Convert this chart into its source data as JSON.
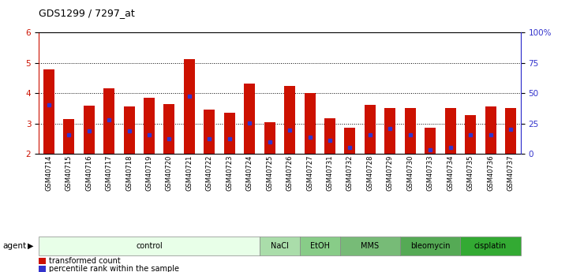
{
  "title": "GDS1299 / 7297_at",
  "samples": [
    "GSM40714",
    "GSM40715",
    "GSM40716",
    "GSM40717",
    "GSM40718",
    "GSM40719",
    "GSM40720",
    "GSM40721",
    "GSM40722",
    "GSM40723",
    "GSM40724",
    "GSM40725",
    "GSM40726",
    "GSM40727",
    "GSM40731",
    "GSM40732",
    "GSM40728",
    "GSM40729",
    "GSM40730",
    "GSM40733",
    "GSM40734",
    "GSM40735",
    "GSM40736",
    "GSM40737"
  ],
  "bar_values": [
    4.78,
    3.15,
    3.6,
    4.17,
    3.55,
    3.85,
    3.65,
    5.12,
    3.45,
    3.35,
    4.32,
    3.05,
    4.23,
    4.0,
    3.17,
    2.87,
    3.62,
    3.5,
    3.5,
    2.87,
    3.5,
    3.28,
    3.55,
    3.5
  ],
  "percentile_values": [
    3.62,
    2.62,
    2.75,
    3.12,
    2.75,
    2.62,
    2.5,
    3.9,
    2.5,
    2.5,
    3.02,
    2.4,
    2.78,
    2.55,
    2.45,
    2.2,
    2.62,
    2.82,
    2.62,
    2.12,
    2.2,
    2.62,
    2.62,
    2.8
  ],
  "y_min": 2,
  "y_max": 6,
  "y_ticks_left": [
    2,
    3,
    4,
    5,
    6
  ],
  "y_ticks_right": [
    0,
    25,
    50,
    75,
    100
  ],
  "bar_color": "#cc1100",
  "marker_color": "#3333cc",
  "groups": [
    {
      "label": "control",
      "start": 0,
      "end": 11,
      "color": "#e8ffe8"
    },
    {
      "label": "NaCl",
      "start": 11,
      "end": 13,
      "color": "#aaddaa"
    },
    {
      "label": "EtOH",
      "start": 13,
      "end": 15,
      "color": "#88cc88"
    },
    {
      "label": "MMS",
      "start": 15,
      "end": 18,
      "color": "#77bb77"
    },
    {
      "label": "bleomycin",
      "start": 18,
      "end": 21,
      "color": "#55aa55"
    },
    {
      "label": "cisplatin",
      "start": 21,
      "end": 24,
      "color": "#33aa33"
    }
  ],
  "agent_label": "agent",
  "legend_red": "transformed count",
  "legend_blue": "percentile rank within the sample"
}
